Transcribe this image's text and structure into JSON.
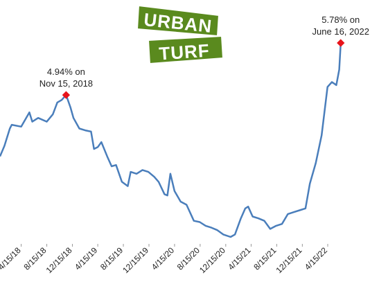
{
  "chart_data": {
    "type": "line",
    "logo": {
      "top": "URBAN",
      "bottom": "TURF"
    },
    "xlim": [
      "2018-01-04",
      "2022-06-30"
    ],
    "xticks": [
      {
        "value": "2018-04-15",
        "label": "4/15/18"
      },
      {
        "value": "2018-08-15",
        "label": "8/15/18"
      },
      {
        "value": "2018-12-15",
        "label": "12/15/18"
      },
      {
        "value": "2019-04-15",
        "label": "4/15/19"
      },
      {
        "value": "2019-08-15",
        "label": "8/15/19"
      },
      {
        "value": "2019-12-15",
        "label": "12/15/19"
      },
      {
        "value": "2020-04-15",
        "label": "4/15/20"
      },
      {
        "value": "2020-08-15",
        "label": "8/15/20"
      },
      {
        "value": "2020-12-15",
        "label": "12/15/20"
      },
      {
        "value": "2021-04-15",
        "label": "4/15/21"
      },
      {
        "value": "2021-08-15",
        "label": "8/15/21"
      },
      {
        "value": "2021-12-15",
        "label": "12/15/21"
      },
      {
        "value": "2022-04-15",
        "label": "4/15/22"
      }
    ],
    "x": [
      "2018-01-04",
      "2018-01-25",
      "2018-02-20",
      "2018-03-01",
      "2018-04-15",
      "2018-05-24",
      "2018-06-07",
      "2018-07-05",
      "2018-08-15",
      "2018-09-13",
      "2018-10-04",
      "2018-10-25",
      "2018-11-15",
      "2018-12-06",
      "2018-12-20",
      "2019-01-17",
      "2019-02-14",
      "2019-03-14",
      "2019-03-28",
      "2019-04-15",
      "2019-05-02",
      "2019-05-30",
      "2019-06-20",
      "2019-07-11",
      "2019-08-08",
      "2019-09-05",
      "2019-09-19",
      "2019-10-17",
      "2019-11-14",
      "2019-12-12",
      "2020-01-09",
      "2020-01-30",
      "2020-02-27",
      "2020-03-12",
      "2020-03-26",
      "2020-04-15",
      "2020-05-14",
      "2020-06-11",
      "2020-07-16",
      "2020-08-13",
      "2020-09-10",
      "2020-10-08",
      "2020-11-05",
      "2020-12-03",
      "2021-01-07",
      "2021-01-28",
      "2021-02-25",
      "2021-03-18",
      "2021-04-01",
      "2021-04-22",
      "2021-05-20",
      "2021-06-17",
      "2021-07-15",
      "2021-08-12",
      "2021-09-09",
      "2021-10-07",
      "2021-11-04",
      "2021-12-02",
      "2021-12-30",
      "2022-01-20",
      "2022-02-17",
      "2022-03-17",
      "2022-04-14",
      "2022-05-05",
      "2022-05-26",
      "2022-06-09",
      "2022-06-16"
    ],
    "series": [
      {
        "color": "#4a7ebb",
        "values": [
          3.95,
          4.12,
          4.4,
          4.46,
          4.43,
          4.66,
          4.51,
          4.57,
          4.51,
          4.63,
          4.82,
          4.86,
          4.94,
          4.74,
          4.57,
          4.4,
          4.37,
          4.35,
          4.07,
          4.1,
          4.18,
          3.95,
          3.79,
          3.81,
          3.54,
          3.47,
          3.7,
          3.67,
          3.73,
          3.7,
          3.62,
          3.54,
          3.34,
          3.32,
          3.67,
          3.39,
          3.22,
          3.17,
          2.91,
          2.89,
          2.83,
          2.8,
          2.76,
          2.69,
          2.65,
          2.69,
          2.95,
          3.11,
          3.14,
          2.98,
          2.95,
          2.91,
          2.78,
          2.83,
          2.86,
          3.02,
          3.05,
          3.08,
          3.11,
          3.51,
          3.84,
          4.29,
          5.07,
          5.15,
          5.1,
          5.35,
          5.78
        ]
      }
    ],
    "annotations": [
      {
        "lines": [
          "4.94% on",
          "Nov 15, 2018"
        ],
        "x": "2018-11-15",
        "value": 4.94,
        "color": "#e8141b"
      },
      {
        "lines": [
          "5.78% on",
          "June 16, 2022"
        ],
        "x": "2022-06-16",
        "value": 5.78,
        "color": "#e8141b"
      }
    ]
  }
}
